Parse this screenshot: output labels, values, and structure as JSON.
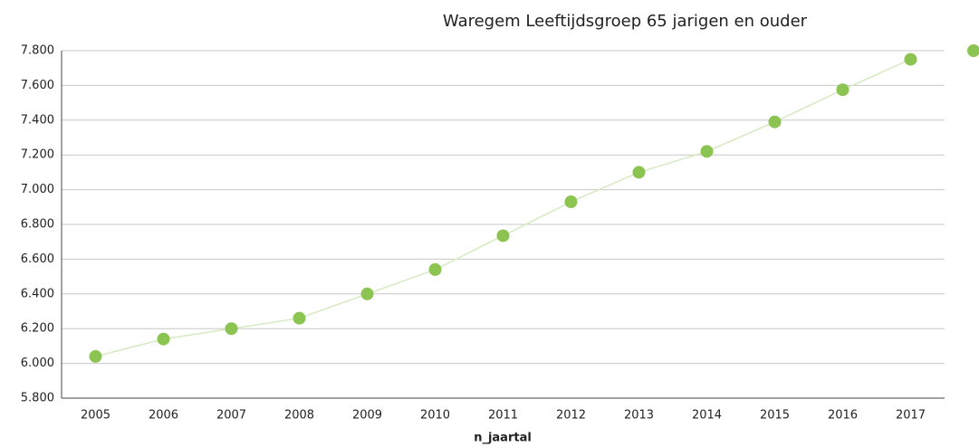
{
  "chart_data": {
    "type": "line",
    "title": "Waregem  Leeftijdsgroep 65 jarigen en ouder",
    "x_label": "n_jaartal",
    "categories": [
      "2005",
      "2006",
      "2007",
      "2008",
      "2009",
      "2010",
      "2011",
      "2012",
      "2013",
      "2014",
      "2015",
      "2016",
      "2017"
    ],
    "values": [
      6040,
      6140,
      6200,
      6260,
      6400,
      6540,
      6735,
      6930,
      7100,
      7220,
      7390,
      7575,
      7750
    ],
    "color": "#8cc452",
    "line_color": "#d6eac2",
    "ylim": [
      5800,
      7800
    ],
    "yticks": [
      {
        "value": 5800,
        "label": "5.800"
      },
      {
        "value": 6000,
        "label": "6.000"
      },
      {
        "value": 6200,
        "label": "6.200"
      },
      {
        "value": 6400,
        "label": "6.400"
      },
      {
        "value": 6600,
        "label": "6.600"
      },
      {
        "value": 6800,
        "label": "6.800"
      },
      {
        "value": 7000,
        "label": "7.000"
      },
      {
        "value": 7200,
        "label": "7.200"
      },
      {
        "value": 7400,
        "label": "7.400"
      },
      {
        "value": 7600,
        "label": "7.600"
      },
      {
        "value": 7800,
        "label": "7.800"
      }
    ],
    "grid": true
  }
}
